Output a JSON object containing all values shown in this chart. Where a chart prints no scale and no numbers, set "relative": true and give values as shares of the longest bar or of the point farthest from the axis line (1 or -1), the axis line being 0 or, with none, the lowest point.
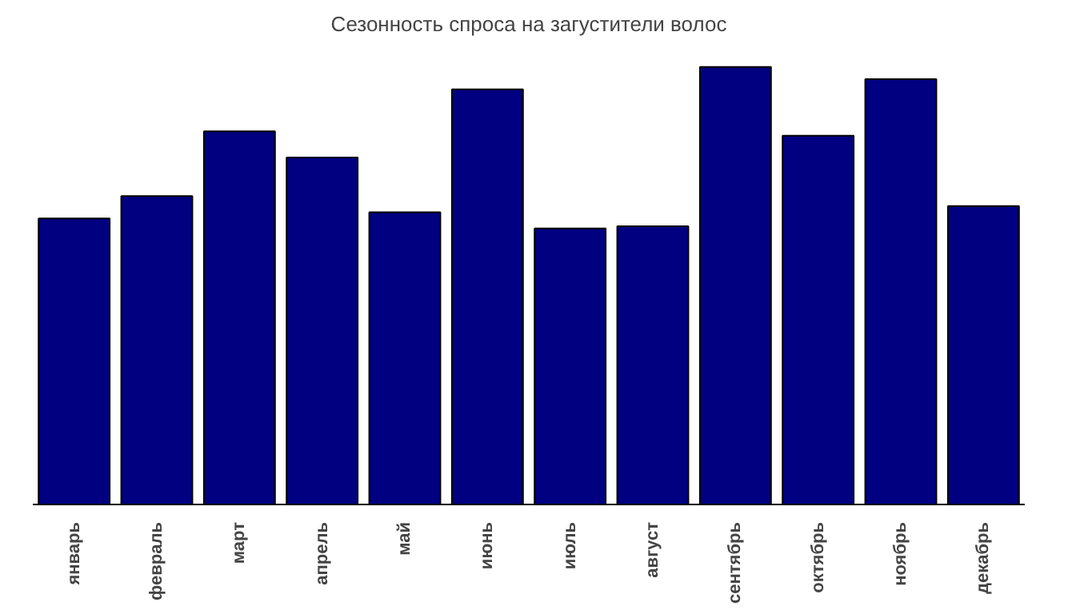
{
  "chart_data": {
    "type": "bar",
    "title": "Сезонность спроса на загустители волос",
    "relative": true,
    "categories": [
      "январь",
      "февраль",
      "март",
      "апрель",
      "май",
      "июнь",
      "июль",
      "август",
      "сентябрь",
      "октябрь",
      "ноябрь",
      "декабрь"
    ],
    "values": [
      0.654,
      0.705,
      0.853,
      0.793,
      0.668,
      0.949,
      0.631,
      0.636,
      1,
      0.843,
      0.972,
      0.682
    ],
    "color": "#000080",
    "grid": false
  }
}
